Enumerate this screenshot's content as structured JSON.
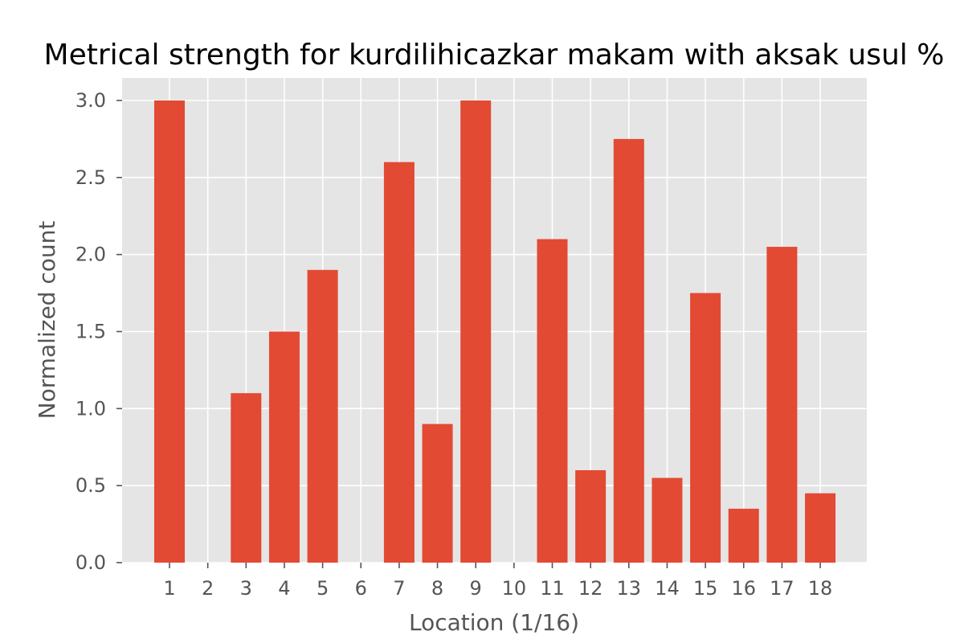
{
  "chart_data": {
    "type": "bar",
    "title": "Metrical strength for kurdilihicazkar makam with aksak usul %",
    "xlabel": "Location (1/16)",
    "ylabel": "Normalized count",
    "categories": [
      "1",
      "2",
      "3",
      "4",
      "5",
      "6",
      "7",
      "8",
      "9",
      "10",
      "11",
      "12",
      "13",
      "14",
      "15",
      "16",
      "17",
      "18"
    ],
    "values": [
      3.0,
      0.0,
      1.1,
      1.5,
      1.9,
      0.0,
      2.6,
      0.9,
      3.0,
      0.0,
      2.1,
      0.6,
      2.75,
      0.55,
      1.75,
      0.35,
      2.05,
      0.45
    ],
    "ylim": [
      0,
      3.0
    ],
    "yticks": [
      "0.0",
      "0.5",
      "1.0",
      "1.5",
      "2.0",
      "2.5",
      "3.0"
    ],
    "grid": true,
    "colors": {
      "bar": "#e24a33",
      "plot_background": "#e5e5e5",
      "grid": "#ffffff",
      "tick_text": "#555555"
    }
  }
}
